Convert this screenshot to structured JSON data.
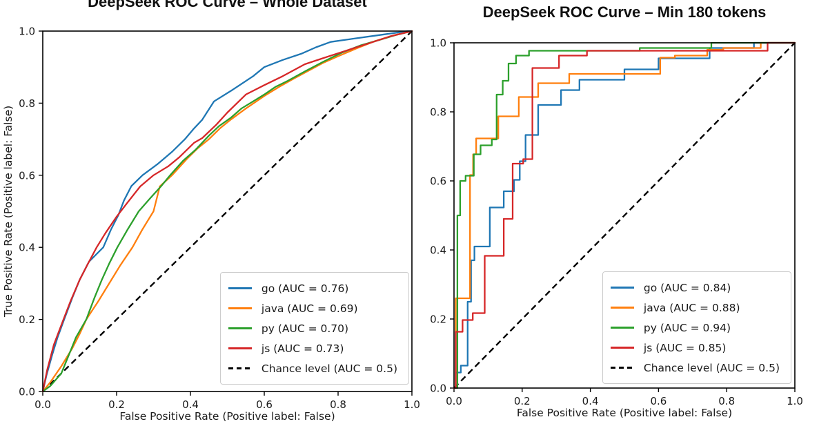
{
  "figure": {
    "background": "#ffffff",
    "text_color": "#1a1a1a",
    "axis_color": "#000000"
  },
  "chart_data": [
    {
      "type": "line",
      "id": "roc-whole-dataset",
      "title": "DeepSeek ROC Curve – Whole Dataset",
      "xlabel": "False Positive Rate (Positive label: False)",
      "ylabel": "True Positive Rate (Positive label: False)",
      "xlim": [
        0.0,
        1.0
      ],
      "ylim": [
        0.0,
        1.0
      ],
      "xticks": [
        "0.0",
        "0.2",
        "0.4",
        "0.6",
        "0.8",
        "1.0"
      ],
      "yticks": [
        "0.0",
        "0.2",
        "0.4",
        "0.6",
        "0.8",
        "1.0"
      ],
      "grid": false,
      "legend_position": "lower right",
      "series": [
        {
          "name": "go",
          "auc": 0.76,
          "label": "go (AUC = 0.76)",
          "color": "#1f77b4",
          "points": [
            [
              0,
              0
            ],
            [
              0.01,
              0.045
            ],
            [
              0.025,
              0.1
            ],
            [
              0.04,
              0.15
            ],
            [
              0.058,
              0.2
            ],
            [
              0.08,
              0.26
            ],
            [
              0.1,
              0.31
            ],
            [
              0.125,
              0.36
            ],
            [
              0.164,
              0.4
            ],
            [
              0.185,
              0.45
            ],
            [
              0.205,
              0.49
            ],
            [
              0.22,
              0.53
            ],
            [
              0.24,
              0.57
            ],
            [
              0.27,
              0.6
            ],
            [
              0.31,
              0.63
            ],
            [
              0.35,
              0.665
            ],
            [
              0.385,
              0.7
            ],
            [
              0.41,
              0.73
            ],
            [
              0.432,
              0.754
            ],
            [
              0.464,
              0.805
            ],
            [
              0.514,
              0.837
            ],
            [
              0.57,
              0.875
            ],
            [
              0.6,
              0.9
            ],
            [
              0.65,
              0.92
            ],
            [
              0.7,
              0.937
            ],
            [
              0.74,
              0.955
            ],
            [
              0.78,
              0.97
            ],
            [
              0.85,
              0.98
            ],
            [
              0.92,
              0.99
            ],
            [
              0.99,
              1.0
            ],
            [
              1,
              1
            ]
          ]
        },
        {
          "name": "java",
          "auc": 0.69,
          "label": "java (AUC = 0.69)",
          "color": "#ff7f0e",
          "points": [
            [
              0,
              0
            ],
            [
              0.02,
              0.025
            ],
            [
              0.05,
              0.07
            ],
            [
              0.08,
              0.12
            ],
            [
              0.1,
              0.16
            ],
            [
              0.118,
              0.2
            ],
            [
              0.15,
              0.25
            ],
            [
              0.18,
              0.3
            ],
            [
              0.21,
              0.35
            ],
            [
              0.243,
              0.4
            ],
            [
              0.27,
              0.45
            ],
            [
              0.3,
              0.5
            ],
            [
              0.317,
              0.569
            ],
            [
              0.35,
              0.6
            ],
            [
              0.39,
              0.645
            ],
            [
              0.42,
              0.675
            ],
            [
              0.45,
              0.7
            ],
            [
              0.48,
              0.73
            ],
            [
              0.51,
              0.755
            ],
            [
              0.55,
              0.785
            ],
            [
              0.6,
              0.82
            ],
            [
              0.64,
              0.845
            ],
            [
              0.68,
              0.868
            ],
            [
              0.72,
              0.89
            ],
            [
              0.76,
              0.912
            ],
            [
              0.8,
              0.93
            ],
            [
              0.85,
              0.952
            ],
            [
              0.9,
              0.972
            ],
            [
              0.95,
              0.988
            ],
            [
              1,
              1
            ]
          ]
        },
        {
          "name": "py",
          "auc": 0.7,
          "label": "py (AUC = 0.70)",
          "color": "#2ca02c",
          "points": [
            [
              0,
              0
            ],
            [
              0.02,
              0.015
            ],
            [
              0.05,
              0.05
            ],
            [
              0.07,
              0.1
            ],
            [
              0.09,
              0.15
            ],
            [
              0.118,
              0.2
            ],
            [
              0.14,
              0.26
            ],
            [
              0.16,
              0.31
            ],
            [
              0.18,
              0.355
            ],
            [
              0.202,
              0.4
            ],
            [
              0.23,
              0.45
            ],
            [
              0.26,
              0.5
            ],
            [
              0.29,
              0.535
            ],
            [
              0.32,
              0.569
            ],
            [
              0.345,
              0.6
            ],
            [
              0.38,
              0.64
            ],
            [
              0.413,
              0.67
            ],
            [
              0.45,
              0.71
            ],
            [
              0.477,
              0.736
            ],
            [
              0.51,
              0.76
            ],
            [
              0.538,
              0.785
            ],
            [
              0.57,
              0.805
            ],
            [
              0.6,
              0.824
            ],
            [
              0.63,
              0.845
            ],
            [
              0.664,
              0.862
            ],
            [
              0.712,
              0.889
            ],
            [
              0.76,
              0.915
            ],
            [
              0.81,
              0.94
            ],
            [
              0.86,
              0.96
            ],
            [
              0.91,
              0.975
            ],
            [
              0.96,
              0.99
            ],
            [
              1,
              1
            ]
          ]
        },
        {
          "name": "js",
          "auc": 0.73,
          "label": "js (AUC = 0.73)",
          "color": "#d62728",
          "points": [
            [
              0,
              0
            ],
            [
              0.012,
              0.06
            ],
            [
              0.03,
              0.13
            ],
            [
              0.056,
              0.2
            ],
            [
              0.075,
              0.25
            ],
            [
              0.1,
              0.31
            ],
            [
              0.12,
              0.35
            ],
            [
              0.146,
              0.4
            ],
            [
              0.17,
              0.44
            ],
            [
              0.2,
              0.485
            ],
            [
              0.23,
              0.525
            ],
            [
              0.264,
              0.569
            ],
            [
              0.3,
              0.6
            ],
            [
              0.34,
              0.625
            ],
            [
              0.37,
              0.65
            ],
            [
              0.41,
              0.69
            ],
            [
              0.432,
              0.703
            ],
            [
              0.47,
              0.74
            ],
            [
              0.5,
              0.774
            ],
            [
              0.55,
              0.824
            ],
            [
              0.6,
              0.85
            ],
            [
              0.65,
              0.875
            ],
            [
              0.71,
              0.908
            ],
            [
              0.76,
              0.925
            ],
            [
              0.82,
              0.945
            ],
            [
              0.88,
              0.965
            ],
            [
              0.94,
              0.985
            ],
            [
              1,
              1
            ]
          ]
        }
      ],
      "chance": {
        "label": "Chance level (AUC = 0.5)",
        "auc": 0.5,
        "color": "#000000",
        "points": [
          [
            0,
            0
          ],
          [
            1,
            1
          ]
        ]
      }
    },
    {
      "type": "line",
      "id": "roc-min-180-tokens",
      "title": "DeepSeek ROC Curve – Min 180 tokens",
      "xlabel": "False Positive Rate (Positive label: False)",
      "xlim": [
        0.0,
        1.0
      ],
      "ylim": [
        0.0,
        1.0
      ],
      "xticks": [
        "0.0",
        "0.2",
        "0.4",
        "0.6",
        "0.8",
        "1.0"
      ],
      "yticks": [
        "0.0",
        "0.2",
        "0.4",
        "0.6",
        "0.8",
        "1.0"
      ],
      "grid": false,
      "legend_position": "lower right",
      "series": [
        {
          "name": "go",
          "auc": 0.84,
          "label": "go (AUC = 0.84)",
          "color": "#1f77b4",
          "points": [
            [
              0,
              0
            ],
            [
              0.005,
              0
            ],
            [
              0.005,
              0.045
            ],
            [
              0.02,
              0.045
            ],
            [
              0.02,
              0.065
            ],
            [
              0.04,
              0.065
            ],
            [
              0.04,
              0.25
            ],
            [
              0.05,
              0.25
            ],
            [
              0.05,
              0.37
            ],
            [
              0.06,
              0.37
            ],
            [
              0.06,
              0.41
            ],
            [
              0.105,
              0.41
            ],
            [
              0.105,
              0.523
            ],
            [
              0.146,
              0.523
            ],
            [
              0.146,
              0.57
            ],
            [
              0.176,
              0.57
            ],
            [
              0.176,
              0.603
            ],
            [
              0.193,
              0.603
            ],
            [
              0.193,
              0.657
            ],
            [
              0.21,
              0.657
            ],
            [
              0.21,
              0.733
            ],
            [
              0.247,
              0.733
            ],
            [
              0.247,
              0.82
            ],
            [
              0.314,
              0.82
            ],
            [
              0.314,
              0.863
            ],
            [
              0.368,
              0.863
            ],
            [
              0.368,
              0.893
            ],
            [
              0.5,
              0.893
            ],
            [
              0.5,
              0.923
            ],
            [
              0.6,
              0.923
            ],
            [
              0.6,
              0.955
            ],
            [
              0.75,
              0.955
            ],
            [
              0.75,
              0.985
            ],
            [
              0.88,
              0.985
            ],
            [
              0.88,
              1.0
            ],
            [
              1,
              1
            ]
          ]
        },
        {
          "name": "java",
          "auc": 0.88,
          "label": "java (AUC = 0.88)",
          "color": "#ff7f0e",
          "points": [
            [
              0,
              0
            ],
            [
              0.005,
              0
            ],
            [
              0.005,
              0.26
            ],
            [
              0.047,
              0.26
            ],
            [
              0.047,
              0.617
            ],
            [
              0.056,
              0.617
            ],
            [
              0.056,
              0.677
            ],
            [
              0.065,
              0.677
            ],
            [
              0.065,
              0.723
            ],
            [
              0.13,
              0.723
            ],
            [
              0.13,
              0.787
            ],
            [
              0.19,
              0.787
            ],
            [
              0.19,
              0.843
            ],
            [
              0.247,
              0.843
            ],
            [
              0.247,
              0.883
            ],
            [
              0.338,
              0.883
            ],
            [
              0.338,
              0.91
            ],
            [
              0.605,
              0.91
            ],
            [
              0.605,
              0.957
            ],
            [
              0.648,
              0.957
            ],
            [
              0.648,
              0.963
            ],
            [
              0.743,
              0.963
            ],
            [
              0.743,
              0.98
            ],
            [
              0.79,
              0.98
            ],
            [
              0.79,
              0.985
            ],
            [
              0.9,
              0.985
            ],
            [
              0.9,
              1.0
            ],
            [
              1,
              1
            ]
          ]
        },
        {
          "name": "py",
          "auc": 0.94,
          "label": "py (AUC = 0.94)",
          "color": "#2ca02c",
          "points": [
            [
              0,
              0
            ],
            [
              0.01,
              0
            ],
            [
              0.01,
              0.5
            ],
            [
              0.018,
              0.5
            ],
            [
              0.018,
              0.6
            ],
            [
              0.034,
              0.6
            ],
            [
              0.034,
              0.615
            ],
            [
              0.058,
              0.615
            ],
            [
              0.058,
              0.677
            ],
            [
              0.078,
              0.677
            ],
            [
              0.078,
              0.703
            ],
            [
              0.111,
              0.703
            ],
            [
              0.111,
              0.72
            ],
            [
              0.125,
              0.72
            ],
            [
              0.125,
              0.85
            ],
            [
              0.143,
              0.85
            ],
            [
              0.143,
              0.89
            ],
            [
              0.16,
              0.89
            ],
            [
              0.16,
              0.94
            ],
            [
              0.182,
              0.94
            ],
            [
              0.182,
              0.963
            ],
            [
              0.22,
              0.963
            ],
            [
              0.22,
              0.977
            ],
            [
              0.545,
              0.977
            ],
            [
              0.545,
              0.985
            ],
            [
              0.755,
              0.985
            ],
            [
              0.755,
              1.0
            ],
            [
              1,
              1
            ]
          ]
        },
        {
          "name": "js",
          "auc": 0.85,
          "label": "js (AUC = 0.85)",
          "color": "#d62728",
          "points": [
            [
              0,
              0
            ],
            [
              0.005,
              0
            ],
            [
              0.005,
              0.163
            ],
            [
              0.025,
              0.163
            ],
            [
              0.025,
              0.197
            ],
            [
              0.055,
              0.197
            ],
            [
              0.055,
              0.217
            ],
            [
              0.09,
              0.217
            ],
            [
              0.09,
              0.383
            ],
            [
              0.146,
              0.383
            ],
            [
              0.146,
              0.49
            ],
            [
              0.172,
              0.49
            ],
            [
              0.172,
              0.65
            ],
            [
              0.203,
              0.65
            ],
            [
              0.203,
              0.663
            ],
            [
              0.23,
              0.663
            ],
            [
              0.23,
              0.927
            ],
            [
              0.308,
              0.927
            ],
            [
              0.308,
              0.963
            ],
            [
              0.39,
              0.963
            ],
            [
              0.39,
              0.977
            ],
            [
              0.92,
              0.977
            ],
            [
              0.92,
              1.0
            ],
            [
              1,
              1
            ]
          ]
        }
      ],
      "chance": {
        "label": "Chance level (AUC = 0.5)",
        "auc": 0.5,
        "color": "#000000",
        "points": [
          [
            0,
            0
          ],
          [
            1,
            1
          ]
        ]
      }
    }
  ]
}
